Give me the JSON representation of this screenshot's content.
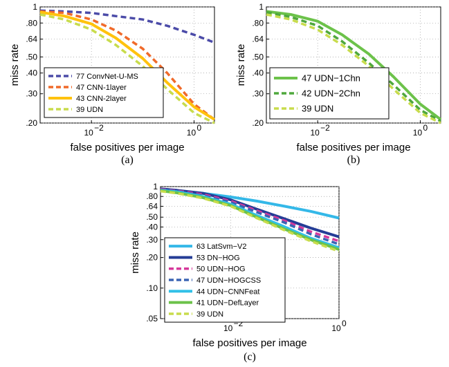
{
  "chart_data": [
    {
      "type": "line",
      "panel": "(a)",
      "xlabel": "false positives per image",
      "ylabel": "miss rate",
      "xscale": "log",
      "yscale": "log",
      "xlim": [
        0.001,
        2.5
      ],
      "ylim": [
        0.2,
        1
      ],
      "x_ticks": [
        {
          "v": 0.01,
          "base": "10",
          "exp": "−2"
        },
        {
          "v": 1,
          "base": "10",
          "exp": "0"
        }
      ],
      "y_ticks": [
        {
          "v": 1,
          "label": "1"
        },
        {
          "v": 0.8,
          "label": ".80"
        },
        {
          "v": 0.64,
          "label": ".64"
        },
        {
          "v": 0.5,
          "label": ".50"
        },
        {
          "v": 0.4,
          "label": ".40"
        },
        {
          "v": 0.3,
          "label": ".30"
        },
        {
          "v": 0.2,
          "label": ".20"
        }
      ],
      "grid": true,
      "legend_position": "bottom-left",
      "series": [
        {
          "name": "77 ConvNet-U-MS",
          "color": "#4b4ba8",
          "style": "dashed",
          "width": 3.5,
          "x": [
            0.001,
            0.003,
            0.01,
            0.03,
            0.1,
            0.3,
            1,
            2.5
          ],
          "y": [
            0.95,
            0.94,
            0.92,
            0.88,
            0.84,
            0.77,
            0.68,
            0.61
          ]
        },
        {
          "name": "47 CNN-1layer",
          "color": "#f06a2a",
          "style": "dashed",
          "width": 3.5,
          "x": [
            0.001,
            0.003,
            0.01,
            0.03,
            0.1,
            0.3,
            1,
            2.5
          ],
          "y": [
            0.94,
            0.92,
            0.84,
            0.72,
            0.56,
            0.4,
            0.26,
            0.21
          ]
        },
        {
          "name": "43 CNN-2layer",
          "color": "#ffc20e",
          "style": "solid",
          "width": 4,
          "x": [
            0.001,
            0.003,
            0.01,
            0.03,
            0.1,
            0.3,
            1,
            2.5
          ],
          "y": [
            0.93,
            0.88,
            0.79,
            0.65,
            0.49,
            0.35,
            0.25,
            0.21
          ]
        },
        {
          "name": "39 UDN",
          "color": "#c8dc4c",
          "style": "dashed",
          "width": 3.5,
          "x": [
            0.001,
            0.003,
            0.01,
            0.03,
            0.1,
            0.3,
            1,
            2.5
          ],
          "y": [
            0.9,
            0.84,
            0.73,
            0.59,
            0.44,
            0.32,
            0.23,
            0.2
          ]
        }
      ]
    },
    {
      "type": "line",
      "panel": "(b)",
      "xlabel": "false positives per image",
      "ylabel": "miss rate",
      "xscale": "log",
      "yscale": "log",
      "xlim": [
        0.001,
        2.5
      ],
      "ylim": [
        0.2,
        1
      ],
      "x_ticks": [
        {
          "v": 0.01,
          "base": "10",
          "exp": "−2"
        },
        {
          "v": 1,
          "base": "10",
          "exp": "0"
        }
      ],
      "y_ticks": [
        {
          "v": 1,
          "label": "1"
        },
        {
          "v": 0.8,
          "label": ".80"
        },
        {
          "v": 0.64,
          "label": ".64"
        },
        {
          "v": 0.5,
          "label": ".50"
        },
        {
          "v": 0.4,
          "label": ".40"
        },
        {
          "v": 0.3,
          "label": ".30"
        },
        {
          "v": 0.2,
          "label": ".20"
        }
      ],
      "grid": true,
      "legend_position": "bottom-left",
      "series": [
        {
          "name": "47 UDN−1Chn",
          "color": "#6cc24a",
          "style": "solid",
          "width": 4,
          "x": [
            0.001,
            0.003,
            0.01,
            0.03,
            0.1,
            0.3,
            1,
            2.5
          ],
          "y": [
            0.94,
            0.9,
            0.82,
            0.68,
            0.52,
            0.38,
            0.26,
            0.21
          ]
        },
        {
          "name": "42 UDN−2Chn",
          "color": "#4fa83c",
          "style": "dashed",
          "width": 3.5,
          "x": [
            0.001,
            0.003,
            0.01,
            0.03,
            0.1,
            0.3,
            1,
            2.5
          ],
          "y": [
            0.93,
            0.87,
            0.77,
            0.62,
            0.46,
            0.34,
            0.24,
            0.205
          ]
        },
        {
          "name": "39 UDN",
          "color": "#c8dc4c",
          "style": "dashed",
          "width": 3.5,
          "x": [
            0.001,
            0.003,
            0.01,
            0.03,
            0.1,
            0.3,
            1,
            2.5
          ],
          "y": [
            0.9,
            0.84,
            0.73,
            0.59,
            0.44,
            0.32,
            0.23,
            0.2
          ]
        }
      ]
    },
    {
      "type": "line",
      "panel": "(c)",
      "xlabel": "false positives per image",
      "ylabel": "miss rate",
      "xscale": "log",
      "yscale": "log",
      "xlim": [
        0.0005,
        1
      ],
      "ylim": [
        0.05,
        1
      ],
      "x_ticks": [
        {
          "v": 0.01,
          "base": "10",
          "exp": "−2"
        },
        {
          "v": 1,
          "base": "10",
          "exp": "0"
        }
      ],
      "y_ticks": [
        {
          "v": 1,
          "label": "1"
        },
        {
          "v": 0.8,
          "label": ".80"
        },
        {
          "v": 0.64,
          "label": ".64"
        },
        {
          "v": 0.5,
          "label": ".50"
        },
        {
          "v": 0.4,
          "label": ".40"
        },
        {
          "v": 0.3,
          "label": ".30"
        },
        {
          "v": 0.2,
          "label": ".20"
        },
        {
          "v": 0.1,
          "label": ".10"
        },
        {
          "v": 0.05,
          "label": ".05"
        }
      ],
      "grid": true,
      "legend_position": "bottom-left",
      "series": [
        {
          "name": "63 LatSvm−V2",
          "color": "#34b8e8",
          "style": "solid",
          "width": 4,
          "x": [
            0.0005,
            0.001,
            0.003,
            0.01,
            0.03,
            0.1,
            0.3,
            1
          ],
          "y": [
            0.93,
            0.91,
            0.86,
            0.79,
            0.72,
            0.64,
            0.57,
            0.49
          ]
        },
        {
          "name": "53 DN−HOG",
          "color": "#253d96",
          "style": "solid",
          "width": 4,
          "x": [
            0.0005,
            0.001,
            0.003,
            0.01,
            0.03,
            0.1,
            0.3,
            1
          ],
          "y": [
            0.95,
            0.92,
            0.86,
            0.74,
            0.6,
            0.48,
            0.39,
            0.32
          ]
        },
        {
          "name": "50 UDN−HOG",
          "color": "#d6389b",
          "style": "dashed",
          "width": 3.5,
          "x": [
            0.0005,
            0.001,
            0.003,
            0.01,
            0.03,
            0.1,
            0.3,
            1
          ],
          "y": [
            0.94,
            0.91,
            0.84,
            0.72,
            0.58,
            0.46,
            0.36,
            0.29
          ]
        },
        {
          "name": "47 UDN−HOGCSS",
          "color": "#3a64b4",
          "style": "dashed",
          "width": 3.5,
          "x": [
            0.0005,
            0.001,
            0.003,
            0.01,
            0.03,
            0.1,
            0.3,
            1
          ],
          "y": [
            0.93,
            0.9,
            0.82,
            0.7,
            0.56,
            0.44,
            0.34,
            0.27
          ]
        },
        {
          "name": "44 UDN−CNNFeat",
          "color": "#30c0e8",
          "style": "solid",
          "width": 4,
          "x": [
            0.0005,
            0.001,
            0.003,
            0.01,
            0.03,
            0.1,
            0.3,
            1
          ],
          "y": [
            0.92,
            0.89,
            0.8,
            0.67,
            0.52,
            0.4,
            0.31,
            0.25
          ]
        },
        {
          "name": "41 UDN−DefLayer",
          "color": "#6cc24a",
          "style": "solid",
          "width": 4,
          "x": [
            0.0005,
            0.001,
            0.003,
            0.01,
            0.03,
            0.1,
            0.3,
            1
          ],
          "y": [
            0.91,
            0.87,
            0.78,
            0.65,
            0.5,
            0.38,
            0.3,
            0.24
          ]
        },
        {
          "name": "39 UDN",
          "color": "#c8dc4c",
          "style": "dashed",
          "width": 3.5,
          "x": [
            0.0005,
            0.001,
            0.003,
            0.01,
            0.03,
            0.1,
            0.3,
            1
          ],
          "y": [
            0.9,
            0.86,
            0.77,
            0.64,
            0.49,
            0.37,
            0.29,
            0.23
          ]
        }
      ]
    }
  ]
}
